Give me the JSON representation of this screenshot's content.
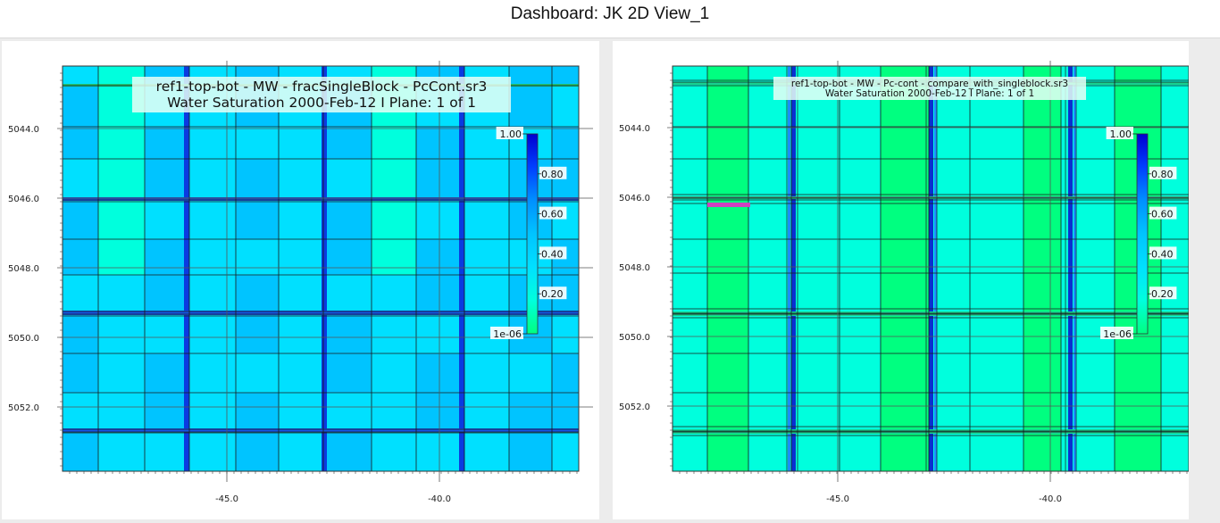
{
  "dashboard": {
    "title": "Dashboard: JK 2D View_1"
  },
  "colors": {
    "property_scale": [
      "#00ff80",
      "#00ffdd",
      "#00e0ff",
      "#00c4ff",
      "#0090ff",
      "#0040ff",
      "#0000d0"
    ],
    "grid_line": "#1a1a1a",
    "well_highlight": "#d040c0"
  },
  "views": [
    {
      "id": "left",
      "title_line1": "ref1-top-bot - MW - fracSingleBlock - PcCont.sr3",
      "title_line2": "Water Saturation  2000-Feb-12   I Plane: 1 of 1",
      "y_ticks": [
        "5044.0",
        "5046.0",
        "5048.0",
        "5050.0",
        "5052.0"
      ],
      "x_ticks": [
        "-45.0",
        "-40.0"
      ],
      "colorbar": {
        "labels": [
          "1.00",
          "0.80",
          "0.60",
          "0.40",
          "0.20",
          "1e-06"
        ],
        "min": 1e-06,
        "max": 1.0
      }
    },
    {
      "id": "right",
      "title_line1": "ref1-top-bot - MW - Pc-cont - compare_with_singleblock.sr3",
      "title_line2": "Water Saturation  2000-Feb-12   I Plane: 1 of 1",
      "y_ticks": [
        "5044.0",
        "5046.0",
        "5048.0",
        "5050.0",
        "5052.0"
      ],
      "x_ticks": [
        "-45.0",
        "-40.0"
      ],
      "colorbar": {
        "labels": [
          "1.00",
          "0.80",
          "0.60",
          "0.40",
          "0.20",
          "1e-06"
        ],
        "min": 1e-06,
        "max": 1.0
      }
    }
  ]
}
